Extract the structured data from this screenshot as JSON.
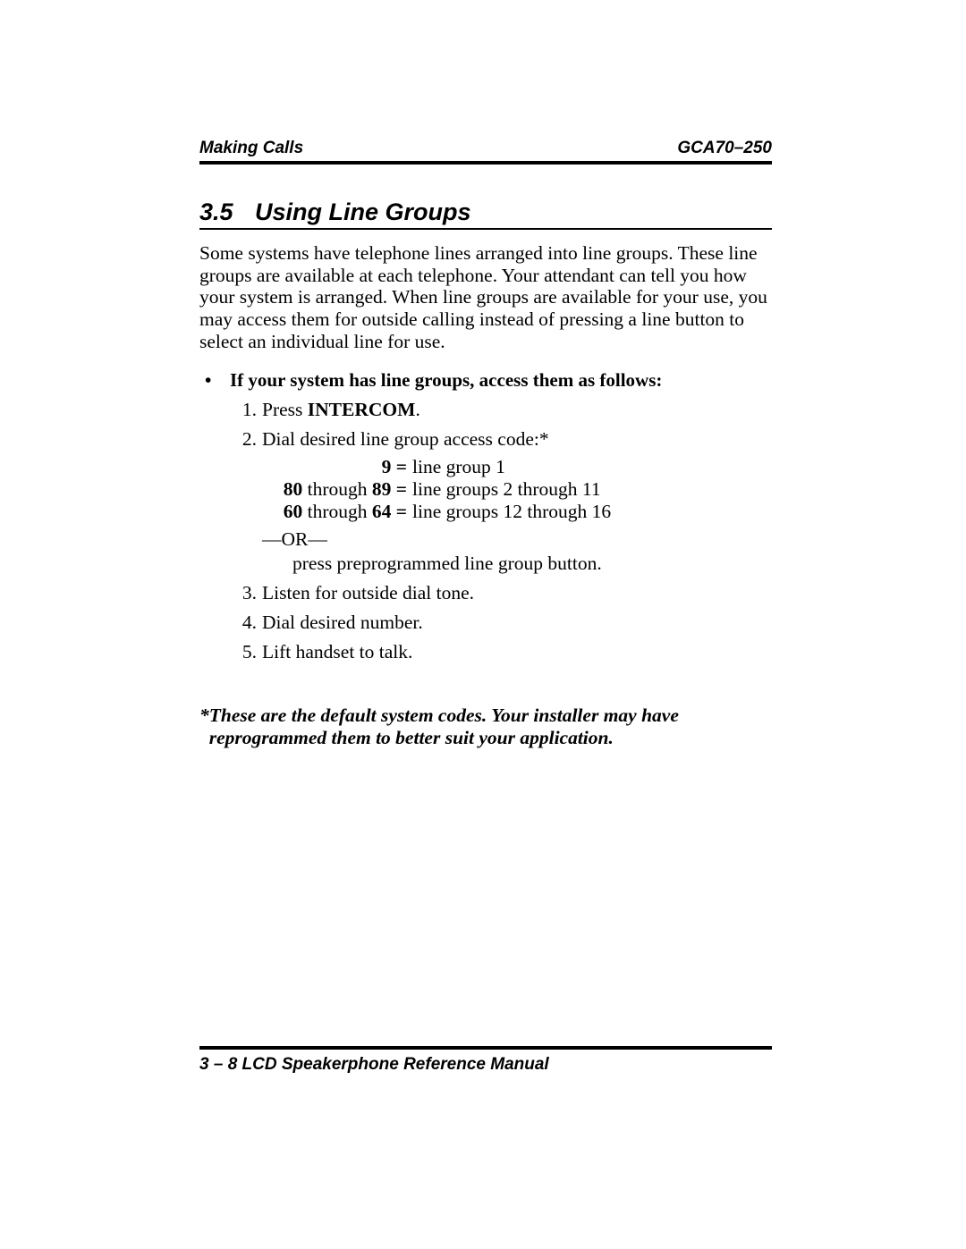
{
  "header": {
    "left": "Making Calls",
    "right": "GCA70–250"
  },
  "section": {
    "number": "3.5",
    "title": "Using Line Groups"
  },
  "intro": "Some systems have telephone lines arranged into line groups. These line groups are available at each telephone. Your attendant can tell you how your system is arranged. When line groups are available for your use, you may access them for outside calling instead of pressing a line button to select an individual line for use.",
  "bullet": "If your system has line groups, access them as follows:",
  "steps": {
    "s1_pre": "Press ",
    "s1_kw": "INTERCOM",
    "s1_post": ".",
    "s2": "Dial desired line group access code:*",
    "s3": "Listen for outside dial tone.",
    "s4": "Dial desired number.",
    "s5": "Lift handset to talk."
  },
  "codes": {
    "l1_lhs": "9 =",
    "l1_rhs": " line group 1",
    "l2_lhs_b1": "80",
    "l2_lhs_t": " through ",
    "l2_lhs_b2": "89 =",
    "l2_rhs": " line groups 2 through 11",
    "l3_lhs_b1": "60",
    "l3_lhs_t": " through ",
    "l3_lhs_b2": "64 =",
    "l3_rhs": " line groups 12 through 16",
    "or": "—OR—",
    "press": "press preprogrammed line group button."
  },
  "footnote": {
    "star": "*",
    "text": "These are the default system codes. Your installer may have reprogrammed them to better suit your application."
  },
  "footer": "3 – 8  LCD Speakerphone Reference Manual"
}
